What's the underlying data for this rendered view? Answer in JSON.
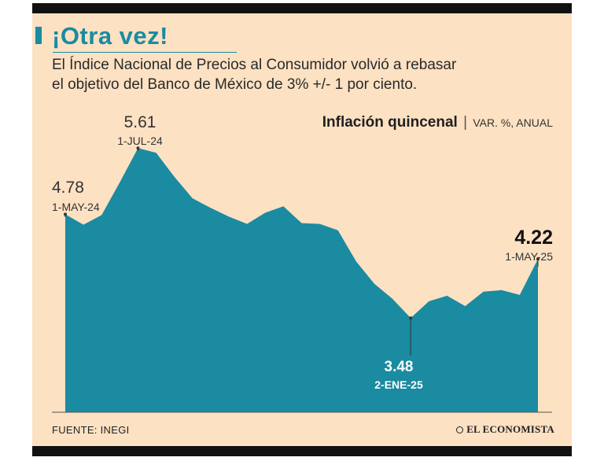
{
  "header": {
    "title": "¡Otra vez!",
    "subtitle_line1": "El Índice Nacional de Precios al Consumidor volvió a rebasar",
    "subtitle_line2": "el objetivo del Banco de México de 3% +/- 1 por ciento."
  },
  "chart_data": {
    "type": "area",
    "title": "Inflación quincenal",
    "unit": "VAR. %, ANUAL",
    "xlabel": "",
    "ylabel": "",
    "ylim": [
      2.3,
      5.75
    ],
    "grid": false,
    "legend": "none",
    "series": [
      {
        "values": [
          4.78,
          4.65,
          4.77,
          5.18,
          5.61,
          5.55,
          5.25,
          4.98,
          4.86,
          4.75,
          4.66,
          4.8,
          4.88,
          4.67,
          4.66,
          4.58,
          4.19,
          3.91,
          3.72,
          3.48,
          3.69,
          3.76,
          3.63,
          3.81,
          3.83,
          3.77,
          4.22
        ]
      }
    ],
    "annotations": [
      {
        "point": 0,
        "value": "4.78",
        "date": "1-MAY-24"
      },
      {
        "point": 4,
        "value": "5.61",
        "date": "1-JUL-24"
      },
      {
        "point": 19,
        "value": "3.48",
        "date": "2-ENE-25"
      },
      {
        "point": 26,
        "value": "4.22",
        "date": "1-MAY-25"
      }
    ]
  },
  "colors": {
    "background": "#fde1c3",
    "accent": "#1a8ba1",
    "area_fill": "#1a8ba1",
    "frame_bars": "#111111"
  },
  "footer": {
    "source": "FUENTE: INEGI",
    "brand": "EL ECONOMISTA"
  }
}
